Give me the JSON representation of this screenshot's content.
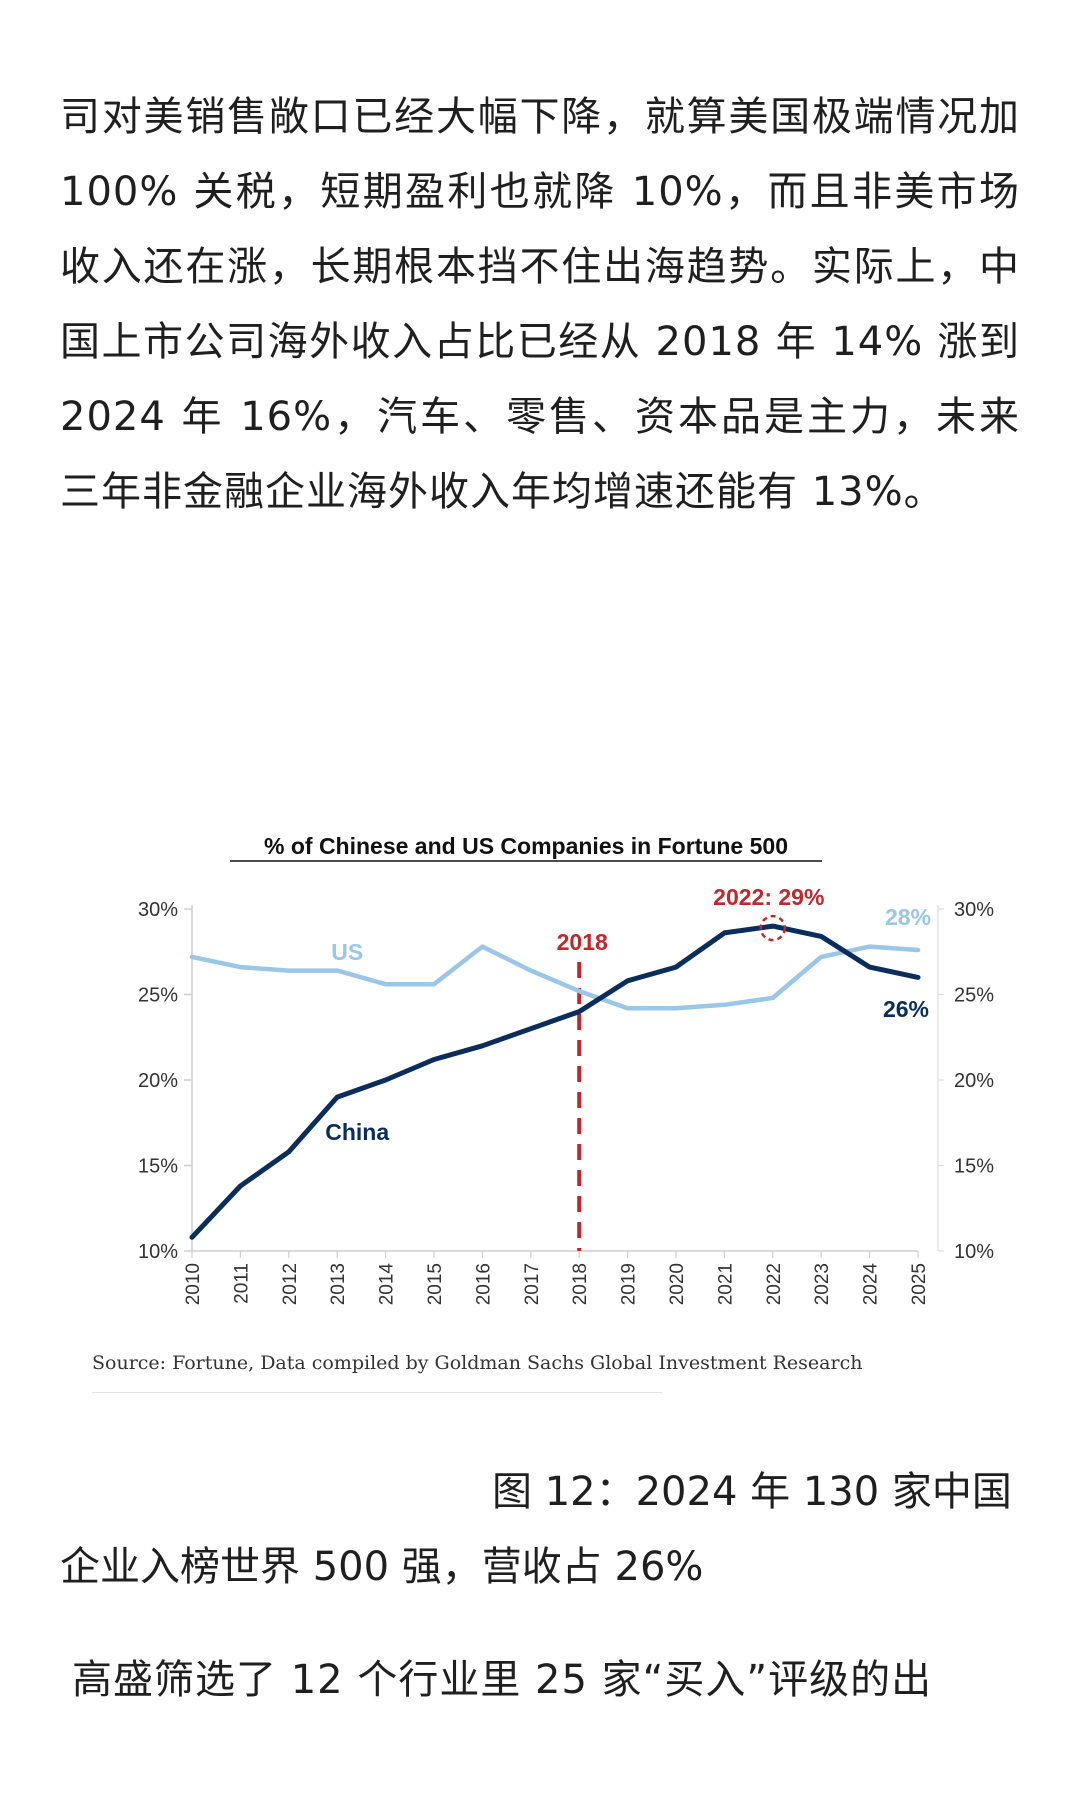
{
  "article": {
    "para_top": "司对美销售敞口已经大幅下降，就算美国极端情况加 100% 关税，短期盈利也就降 10%，而且非美市场收入还在涨，长期根本挡不住出海趋势。实际上，中国上市公司海外收入占比已经从 2018 年 14% 涨到 2024 年 16%，汽车、零售、资本品是主力，未来三年非金融企业海外收入年均增速还能有 13%。",
    "caption": "图 12：2024 年 130 家中国企业入榜世界 500 强，营收占 26%",
    "para_bottom": "高盛筛选了 12 个行业里 25 家“买入”评级的出"
  },
  "chart_data": {
    "type": "line",
    "title": "% of Chinese and US Companies in Fortune 500",
    "x": [
      "2010",
      "2011",
      "2012",
      "2013",
      "2014",
      "2015",
      "2016",
      "2017",
      "2018",
      "2019",
      "2020",
      "2021",
      "2022",
      "2023",
      "2024",
      "2025"
    ],
    "ylim": [
      10,
      30
    ],
    "yticks": [
      "10%",
      "15%",
      "20%",
      "25%",
      "30%"
    ],
    "grid": false,
    "series": [
      {
        "name": "China",
        "color": "#0b2d5b",
        "values": [
          10.8,
          13.8,
          15.8,
          19.0,
          20.0,
          21.2,
          22.0,
          23.0,
          24.0,
          25.8,
          26.6,
          28.6,
          29.0,
          28.4,
          26.6,
          26.0
        ]
      },
      {
        "name": "US",
        "color": "#9ac6e8",
        "values": [
          27.2,
          26.6,
          26.4,
          26.4,
          25.6,
          25.6,
          27.8,
          26.4,
          25.2,
          24.2,
          24.2,
          24.4,
          24.8,
          27.2,
          27.8,
          27.6
        ]
      }
    ],
    "annotations": {
      "marker_year_label": "2018",
      "peak_label": "2022: 29%",
      "us_end_label": "28%",
      "china_end_label": "26%",
      "china_label": "China",
      "us_label": "US"
    },
    "colors": {
      "marker": "#c0282d"
    },
    "source": "Source: Fortune, Data compiled by Goldman Sachs Global Investment Research"
  }
}
